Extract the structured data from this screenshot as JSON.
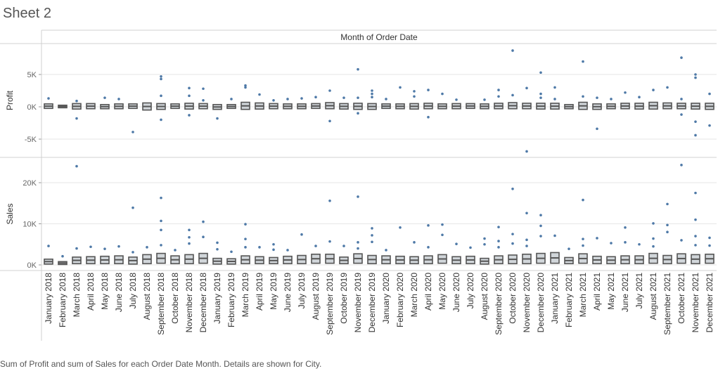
{
  "sheet": {
    "title": "Sheet 2"
  },
  "footnote": "Sum of Profit and sum of Sales for each Order Date Month.  Details are shown for City.",
  "colors": {
    "mark": "#4e79a7",
    "box": "#555555",
    "grid": "#e6e6e6",
    "line": "#d0d0d0"
  },
  "chart_data": {
    "type": "scatter",
    "column_header": "Month of Order Date",
    "categories": [
      "January 2018",
      "February 2018",
      "March 2018",
      "April 2018",
      "May 2018",
      "June 2018",
      "July 2018",
      "August 2018",
      "September 2018",
      "October 2018",
      "November 2018",
      "December 2018",
      "January 2019",
      "February 2019",
      "March 2019",
      "April 2019",
      "May 2019",
      "June 2019",
      "July 2019",
      "August 2019",
      "September 2019",
      "October 2019",
      "November 2019",
      "December 2019",
      "January 2020",
      "February 2020",
      "March 2020",
      "April 2020",
      "May 2020",
      "June 2020",
      "July 2020",
      "August 2020",
      "September 2020",
      "October 2020",
      "November 2020",
      "December 2020",
      "January 2021",
      "February 2021",
      "March 2021",
      "April 2021",
      "May 2021",
      "June 2021",
      "July 2021",
      "August 2021",
      "September 2021",
      "October 2021",
      "November 2021",
      "December 2021"
    ],
    "series": [
      {
        "name": "Profit",
        "axis_label": "Profit",
        "ticks": [
          {
            "value": 5000,
            "label": "5K"
          },
          {
            "value": 0,
            "label": "0K"
          },
          {
            "value": -5000,
            "label": "-5K"
          }
        ],
        "ylim": [
          -7000,
          9000
        ],
        "box": [
          [
            -250,
            450
          ],
          [
            -150,
            250
          ],
          [
            -350,
            500
          ],
          [
            -300,
            500
          ],
          [
            -300,
            350
          ],
          [
            -300,
            450
          ],
          [
            -250,
            450
          ],
          [
            -500,
            600
          ],
          [
            -400,
            500
          ],
          [
            -250,
            450
          ],
          [
            -350,
            550
          ],
          [
            -300,
            500
          ],
          [
            -400,
            350
          ],
          [
            -250,
            350
          ],
          [
            -400,
            700
          ],
          [
            -350,
            600
          ],
          [
            -300,
            500
          ],
          [
            -300,
            450
          ],
          [
            -300,
            450
          ],
          [
            -250,
            500
          ],
          [
            -300,
            650
          ],
          [
            -350,
            500
          ],
          [
            -400,
            550
          ],
          [
            -400,
            500
          ],
          [
            -250,
            450
          ],
          [
            -300,
            450
          ],
          [
            -350,
            500
          ],
          [
            -300,
            550
          ],
          [
            -300,
            450
          ],
          [
            -300,
            500
          ],
          [
            -250,
            500
          ],
          [
            -300,
            450
          ],
          [
            -300,
            550
          ],
          [
            -300,
            650
          ],
          [
            -300,
            550
          ],
          [
            -350,
            550
          ],
          [
            -350,
            550
          ],
          [
            -300,
            350
          ],
          [
            -400,
            700
          ],
          [
            -400,
            450
          ],
          [
            -300,
            450
          ],
          [
            -300,
            550
          ],
          [
            -350,
            550
          ],
          [
            -350,
            700
          ],
          [
            -300,
            600
          ],
          [
            -300,
            550
          ],
          [
            -350,
            550
          ],
          [
            -400,
            550
          ]
        ],
        "outliers": [
          [
            1300
          ],
          [],
          [
            900,
            -1800
          ],
          [],
          [
            1400
          ],
          [
            1200
          ],
          [
            -3900
          ],
          [],
          [
            4700,
            4300,
            1700,
            -2000
          ],
          [],
          [
            2900,
            1700,
            -1300
          ],
          [
            2800,
            1000
          ],
          [
            -1800
          ],
          [
            1200
          ],
          [
            3300,
            3000
          ],
          [
            1900
          ],
          [
            1000
          ],
          [
            1200
          ],
          [
            1300
          ],
          [
            1500
          ],
          [
            2500,
            -2200
          ],
          [
            1400
          ],
          [
            5800,
            1400,
            -1000
          ],
          [
            2500,
            2000,
            1500
          ],
          [
            1200
          ],
          [
            3000
          ],
          [
            2400,
            1600
          ],
          [
            2600,
            -1600
          ],
          [
            2000
          ],
          [
            1100
          ],
          [],
          [
            1100
          ],
          [
            2600,
            1600
          ],
          [
            8700,
            1800
          ],
          [
            2900,
            -6900
          ],
          [
            5300,
            2000,
            1400
          ],
          [
            3000,
            1200
          ],
          [],
          [
            7000,
            1600
          ],
          [
            1400,
            -3400
          ],
          [
            1200
          ],
          [
            2200
          ],
          [
            1500
          ],
          [
            2600
          ],
          [
            3000
          ],
          [
            7600,
            1200,
            -1200
          ],
          [
            5000,
            4500,
            -2300,
            -4400
          ],
          [
            2000,
            -2900
          ]
        ]
      },
      {
        "name": "Sales",
        "axis_label": "Sales",
        "ticks": [
          {
            "value": 20000,
            "label": "20K"
          },
          {
            "value": 10000,
            "label": "10K"
          },
          {
            "value": 0,
            "label": "0K"
          }
        ],
        "ylim": [
          -1000,
          26000
        ],
        "box": [
          [
            200,
            1400
          ],
          [
            100,
            800
          ],
          [
            300,
            1900
          ],
          [
            300,
            2000
          ],
          [
            300,
            2100
          ],
          [
            300,
            2200
          ],
          [
            200,
            1900
          ],
          [
            300,
            2500
          ],
          [
            400,
            2800
          ],
          [
            300,
            2200
          ],
          [
            300,
            2500
          ],
          [
            400,
            2800
          ],
          [
            200,
            1600
          ],
          [
            200,
            1500
          ],
          [
            300,
            2200
          ],
          [
            300,
            2000
          ],
          [
            300,
            1800
          ],
          [
            300,
            2100
          ],
          [
            300,
            2300
          ],
          [
            400,
            2600
          ],
          [
            400,
            2600
          ],
          [
            300,
            1900
          ],
          [
            400,
            2700
          ],
          [
            300,
            2300
          ],
          [
            300,
            2200
          ],
          [
            300,
            2100
          ],
          [
            300,
            2000
          ],
          [
            300,
            2200
          ],
          [
            400,
            2500
          ],
          [
            300,
            2000
          ],
          [
            300,
            2100
          ],
          [
            200,
            1600
          ],
          [
            300,
            2200
          ],
          [
            300,
            2400
          ],
          [
            300,
            2600
          ],
          [
            400,
            2800
          ],
          [
            400,
            3000
          ],
          [
            300,
            1800
          ],
          [
            400,
            2700
          ],
          [
            300,
            2100
          ],
          [
            300,
            2000
          ],
          [
            300,
            2200
          ],
          [
            300,
            2200
          ],
          [
            400,
            2800
          ],
          [
            300,
            2300
          ],
          [
            400,
            2700
          ],
          [
            300,
            2500
          ],
          [
            400,
            2600
          ]
        ],
        "outliers": [
          [
            4600
          ],
          [
            2100
          ],
          [
            24000,
            4000
          ],
          [
            4400
          ],
          [
            3900
          ],
          [
            4500
          ],
          [
            13900,
            3100
          ],
          [
            4300
          ],
          [
            16300,
            10700,
            8500,
            4800
          ],
          [
            3600
          ],
          [
            8500,
            6700,
            5200
          ],
          [
            10500,
            6800
          ],
          [
            5400,
            3800
          ],
          [
            3200
          ],
          [
            9900,
            6300,
            4300
          ],
          [
            4300
          ],
          [
            5000,
            3700
          ],
          [
            3600
          ],
          [
            7400
          ],
          [
            4600
          ],
          [
            15600,
            5700
          ],
          [
            4600
          ],
          [
            16600,
            5500,
            4000
          ],
          [
            8900,
            7200,
            5600
          ],
          [
            3600
          ],
          [
            9100
          ],
          [
            5500
          ],
          [
            9600,
            4300
          ],
          [
            9800,
            7300
          ],
          [
            5100
          ],
          [
            4200
          ],
          [
            6400,
            5000
          ],
          [
            9200,
            5800,
            4300
          ],
          [
            18500,
            7500,
            5200
          ],
          [
            12600,
            6100,
            4600
          ],
          [
            12100,
            9500,
            7000
          ],
          [
            7100
          ],
          [
            3900
          ],
          [
            15800,
            6300,
            4700
          ],
          [
            6500
          ],
          [
            5300
          ],
          [
            9100,
            5500
          ],
          [
            5000
          ],
          [
            10100,
            6400,
            4500
          ],
          [
            14800,
            9700,
            8000
          ],
          [
            24300,
            6000
          ],
          [
            17500,
            11000,
            7000,
            4800
          ],
          [
            6600,
            4700
          ]
        ]
      }
    ],
    "grid": true
  }
}
